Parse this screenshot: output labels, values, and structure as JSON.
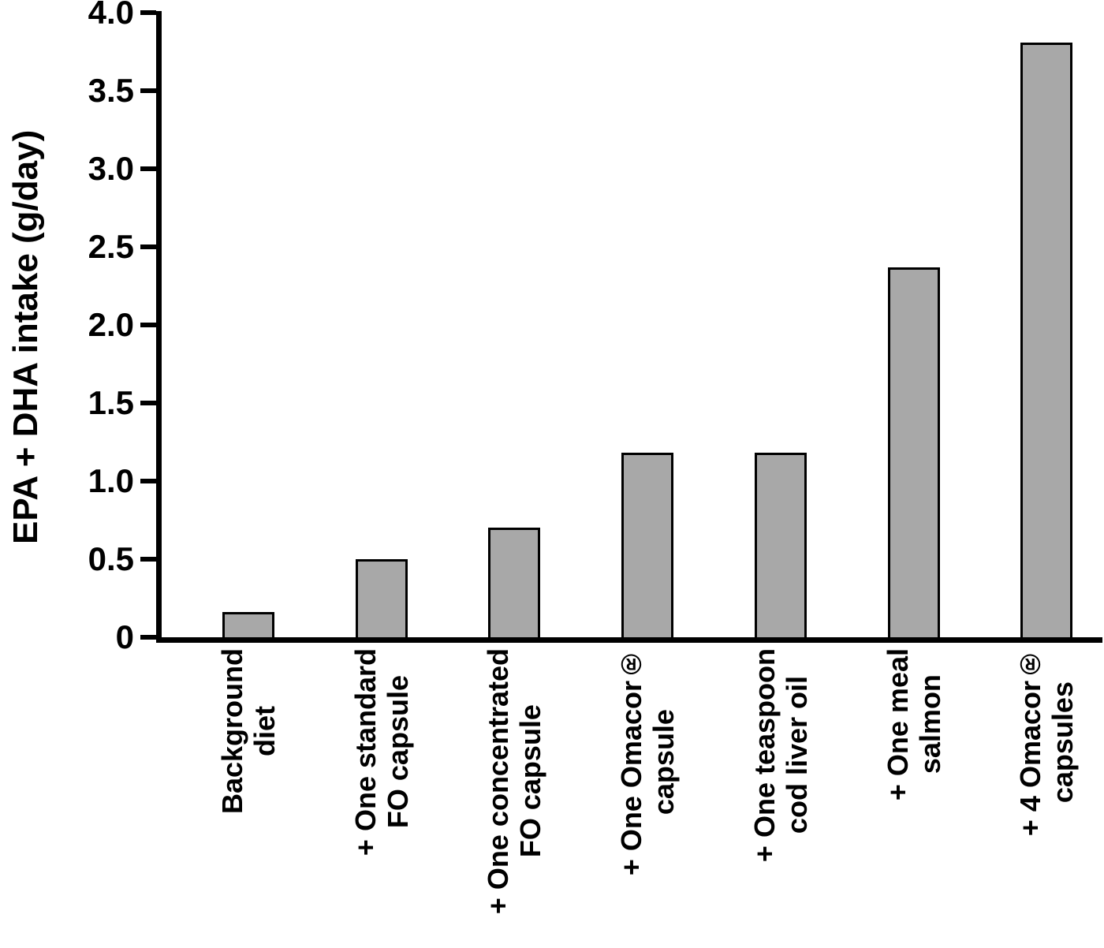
{
  "chart_data": {
    "type": "bar",
    "title": "",
    "xlabel": "",
    "ylabel": "EPA + DHA intake (g/day)",
    "ylim": [
      0,
      4.0
    ],
    "yticks": [
      0,
      0.5,
      1.0,
      1.5,
      2.0,
      2.5,
      3.0,
      3.5,
      4.0
    ],
    "ytick_labels": [
      "0",
      "0.5",
      "1.0",
      "1.5",
      "2.0",
      "2.5",
      "3.0",
      "3.5",
      "4.0"
    ],
    "categories": [
      "Background\ndiet",
      "+ One standard\nFO capsule",
      "+ One concentrated\nFO capsule",
      "+ One Omacor®\ncapsule",
      "+ One teaspoon\ncod liver oil",
      "+ One meal\nsalmon",
      "+ 4 Omacor®\ncapsules"
    ],
    "values": [
      0.16,
      0.5,
      0.7,
      1.18,
      1.18,
      2.37,
      3.81
    ],
    "grid": false,
    "legend": false,
    "bar_color": "#a8a8a8",
    "bar_border_color": "#000000",
    "axis_color": "#000000",
    "text_color": "#000000"
  }
}
